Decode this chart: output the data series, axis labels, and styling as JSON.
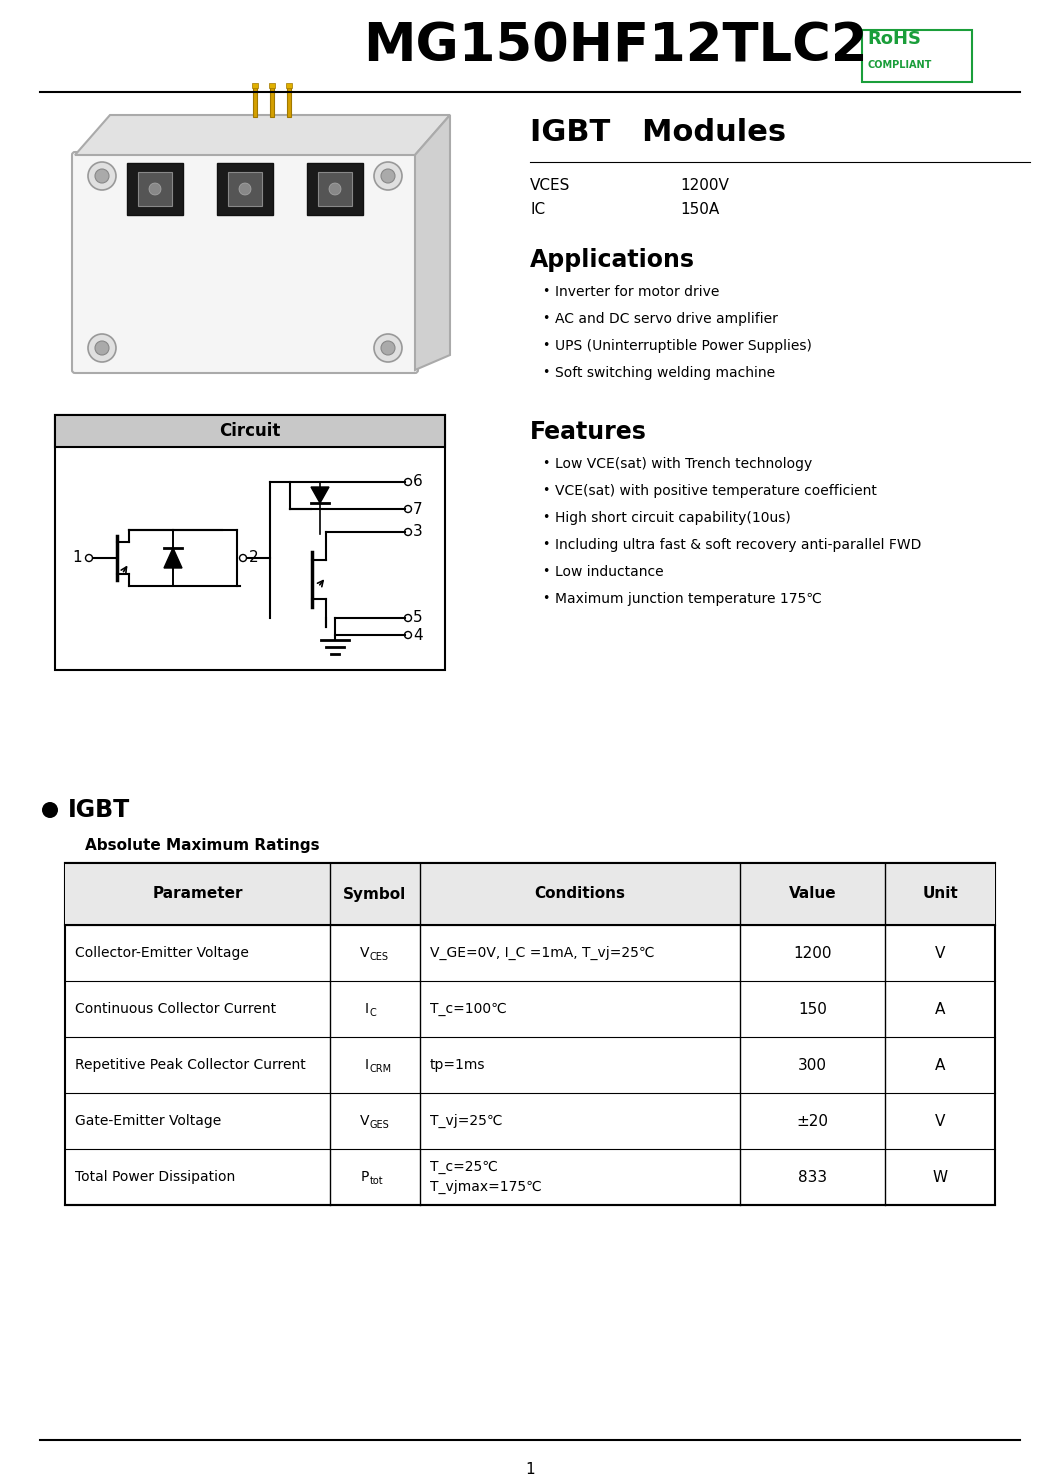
{
  "title": "MG150HF12TLC2",
  "rohs_color": "#1a9e3a",
  "section_title": "IGBT   Modules",
  "specs": [
    [
      "VCES",
      "1200V"
    ],
    [
      "IC",
      "150A"
    ]
  ],
  "applications_title": "Applications",
  "applications": [
    "Inverter for motor drive",
    "AC and DC servo drive amplifier",
    "UPS (Uninterruptible Power Supplies)",
    "Soft switching welding machine"
  ],
  "features_title": "Features",
  "features": [
    [
      "Low V",
      "CE(sat)",
      " with Trench technology"
    ],
    [
      "V",
      "CE(sat)",
      " with positive temperature coefficient"
    ],
    [
      "High short circuit capability(10us)",
      "",
      ""
    ],
    [
      "Including ultra fast & soft recovery anti-parallel FWD",
      "",
      ""
    ],
    [
      "Low inductance",
      "",
      ""
    ],
    [
      "Maximum junction temperature 175℃",
      "",
      ""
    ]
  ],
  "circuit_title": "Circuit",
  "igbt_section": "IGBT",
  "table_title": "Absolute Maximum Ratings",
  "table_headers": [
    "Parameter",
    "Symbol",
    "Conditions",
    "Value",
    "Unit"
  ],
  "table_rows": [
    [
      "Collector-Emitter Voltage",
      "V_CES",
      "V_GE=0V, I_C =1mA, T_vj=25℃",
      "1200",
      "V"
    ],
    [
      "Continuous Collector Current",
      "I_C",
      "T_c=100℃",
      "150",
      "A"
    ],
    [
      "Repetitive Peak Collector Current",
      "I_CRM",
      "tp=1ms",
      "300",
      "A"
    ],
    [
      "Gate-Emitter Voltage",
      "V_GES",
      "T_vj=25℃",
      "±20",
      "V"
    ],
    [
      "Total Power Dissipation",
      "P_tot",
      "T_c=25℃\nT_vjmax=175℃",
      "833",
      "W"
    ]
  ],
  "page_number": "1",
  "bg_color": "#ffffff"
}
